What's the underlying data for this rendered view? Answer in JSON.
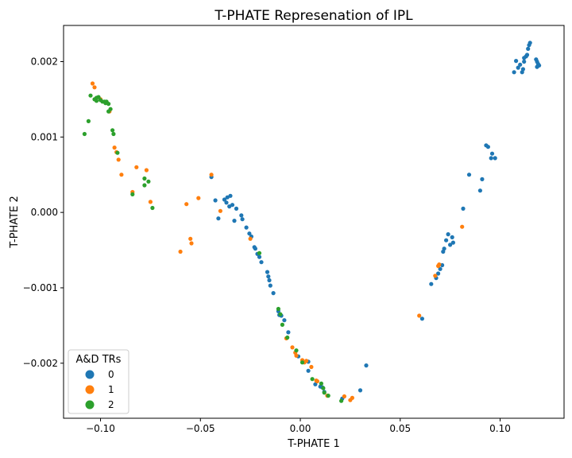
{
  "chart_data": {
    "type": "scatter",
    "title": "T-PHATE Represenation of IPL",
    "xlabel": "T-PHATE 1",
    "ylabel": "T-PHATE 2",
    "xlim": [
      -0.1185,
      0.132
    ],
    "ylim": [
      -0.00273,
      0.00248
    ],
    "x_ticks": [
      -0.1,
      -0.05,
      0.0,
      0.05,
      0.1
    ],
    "x_tick_labels": [
      "−0.10",
      "−0.05",
      "0.00",
      "0.05",
      "0.10"
    ],
    "y_ticks": [
      -0.002,
      -0.001,
      0.0,
      0.001,
      0.002
    ],
    "y_tick_labels": [
      "−0.002",
      "−0.001",
      "0.000",
      "0.001",
      "0.002"
    ],
    "grid": false,
    "legend": {
      "title": "A&D TRs",
      "placement": "lower-left"
    },
    "series": [
      {
        "name": "0",
        "color": "#1f77b4",
        "points": [
          [
            0.115,
            0.00225
          ],
          [
            0.1145,
            0.00222
          ],
          [
            0.114,
            0.00217
          ],
          [
            0.1135,
            0.00209
          ],
          [
            0.113,
            0.00207
          ],
          [
            0.112,
            0.002
          ],
          [
            0.112,
            0.00205
          ],
          [
            0.11,
            0.00196
          ],
          [
            0.1115,
            0.0019
          ],
          [
            0.111,
            0.00186
          ],
          [
            0.109,
            0.00192
          ],
          [
            0.108,
            0.00201
          ],
          [
            0.107,
            0.00186
          ],
          [
            0.118,
            0.00203
          ],
          [
            0.1185,
            0.002
          ],
          [
            0.119,
            0.00197
          ],
          [
            0.1195,
            0.00195
          ],
          [
            0.1185,
            0.00193
          ],
          [
            0.093,
            0.00089
          ],
          [
            0.094,
            0.00087
          ],
          [
            0.096,
            0.00078
          ],
          [
            0.0955,
            0.00072
          ],
          [
            0.0975,
            0.00072
          ],
          [
            0.0845,
            0.0005
          ],
          [
            0.091,
            0.00044
          ],
          [
            0.09,
            0.00029
          ],
          [
            0.0815,
            5e-05
          ],
          [
            0.074,
            -0.00029
          ],
          [
            0.076,
            -0.00033
          ],
          [
            0.073,
            -0.00037
          ],
          [
            0.0765,
            -0.0004
          ],
          [
            0.075,
            -0.00043
          ],
          [
            0.072,
            -0.00048
          ],
          [
            0.0715,
            -0.00052
          ],
          [
            0.071,
            -0.0007
          ],
          [
            0.07,
            -0.00075
          ],
          [
            0.069,
            -0.00081
          ],
          [
            0.068,
            -0.00087
          ],
          [
            0.0655,
            -0.00095
          ],
          [
            0.061,
            -0.00141
          ],
          [
            -0.0445,
            0.00047
          ],
          [
            -0.0425,
            0.00016
          ],
          [
            -0.0365,
            0.0002
          ],
          [
            -0.035,
            0.00022
          ],
          [
            -0.038,
            0.00017
          ],
          [
            -0.037,
            0.00013
          ],
          [
            -0.034,
            0.0001
          ],
          [
            -0.0355,
            8e-05
          ],
          [
            -0.032,
            5e-05
          ],
          [
            -0.041,
            -8e-05
          ],
          [
            -0.033,
            -0.00011
          ],
          [
            -0.0295,
            -4e-05
          ],
          [
            -0.029,
            -9e-05
          ],
          [
            -0.027,
            -0.0002
          ],
          [
            -0.0255,
            -0.00028
          ],
          [
            -0.0245,
            -0.00032
          ],
          [
            -0.023,
            -0.00046
          ],
          [
            -0.0225,
            -0.00048
          ],
          [
            -0.0215,
            -0.00055
          ],
          [
            -0.0205,
            -0.00059
          ],
          [
            -0.0195,
            -0.00066
          ],
          [
            -0.0165,
            -0.00079
          ],
          [
            -0.016,
            -0.00085
          ],
          [
            -0.0155,
            -0.0009
          ],
          [
            -0.015,
            -0.00097
          ],
          [
            -0.0135,
            -0.00107
          ],
          [
            -0.011,
            -0.00131
          ],
          [
            -0.0105,
            -0.00136
          ],
          [
            -0.0095,
            -0.00137
          ],
          [
            -0.008,
            -0.00143
          ],
          [
            -0.006,
            -0.00159
          ],
          [
            -0.001,
            -0.00191
          ],
          [
            0.004,
            -0.00198
          ],
          [
            0.004,
            -0.0021
          ],
          [
            0.0075,
            -0.00228
          ],
          [
            0.01,
            -0.00231
          ],
          [
            0.011,
            -0.00232
          ],
          [
            0.012,
            -0.00238
          ],
          [
            0.03,
            -0.00236
          ],
          [
            0.033,
            -0.00203
          ],
          [
            0.021,
            -0.00247
          ]
        ]
      },
      {
        "name": "1",
        "color": "#ff7f0e",
        "points": [
          [
            -0.104,
            0.00171
          ],
          [
            -0.103,
            0.00166
          ],
          [
            -0.1,
            0.0015
          ],
          [
            -0.0955,
            0.00134
          ],
          [
            -0.093,
            0.00086
          ],
          [
            -0.092,
            0.0008
          ],
          [
            -0.091,
            0.0007
          ],
          [
            -0.0895,
            0.0005
          ],
          [
            -0.082,
            0.0006
          ],
          [
            -0.077,
            0.00056
          ],
          [
            -0.084,
            0.00027
          ],
          [
            -0.075,
            0.00014
          ],
          [
            -0.057,
            0.00011
          ],
          [
            -0.051,
            0.00019
          ],
          [
            -0.0445,
            0.0005
          ],
          [
            -0.04,
            2e-05
          ],
          [
            -0.055,
            -0.00035
          ],
          [
            -0.0545,
            -0.00041
          ],
          [
            -0.06,
            -0.00052
          ],
          [
            -0.025,
            -0.00035
          ],
          [
            -0.007,
            -0.00167
          ],
          [
            -0.004,
            -0.00179
          ],
          [
            -0.0025,
            -0.00186
          ],
          [
            -0.002,
            -0.0019
          ],
          [
            0.001,
            -0.00196
          ],
          [
            0.002,
            -0.00199
          ],
          [
            0.003,
            -0.00197
          ],
          [
            0.0055,
            -0.00205
          ],
          [
            0.008,
            -0.00223
          ],
          [
            0.0085,
            -0.00224
          ],
          [
            0.0135,
            -0.00243
          ],
          [
            0.022,
            -0.00244
          ],
          [
            0.026,
            -0.00246
          ],
          [
            0.025,
            -0.00249
          ],
          [
            0.0595,
            -0.00137
          ],
          [
            0.069,
            -0.00071
          ],
          [
            0.0675,
            -0.00084
          ],
          [
            0.0695,
            -0.00069
          ],
          [
            0.081,
            -0.00019
          ]
        ]
      },
      {
        "name": "2",
        "color": "#2ca02c",
        "points": [
          [
            -0.105,
            0.00155
          ],
          [
            -0.102,
            0.00152
          ],
          [
            -0.103,
            0.0015
          ],
          [
            -0.101,
            0.00153
          ],
          [
            -0.1,
            0.00149
          ],
          [
            -0.099,
            0.00147
          ],
          [
            -0.098,
            0.00147
          ],
          [
            -0.097,
            0.00147
          ],
          [
            -0.096,
            0.00144
          ],
          [
            -0.0975,
            0.00145
          ],
          [
            -0.102,
            0.00148
          ],
          [
            -0.095,
            0.00137
          ],
          [
            -0.096,
            0.00134
          ],
          [
            -0.106,
            0.00121
          ],
          [
            -0.108,
            0.00104
          ],
          [
            -0.094,
            0.00109
          ],
          [
            -0.0935,
            0.00104
          ],
          [
            -0.0915,
            0.00079
          ],
          [
            -0.078,
            0.00045
          ],
          [
            -0.076,
            0.00041
          ],
          [
            -0.078,
            0.00036
          ],
          [
            -0.084,
            0.00024
          ],
          [
            -0.074,
            6e-05
          ],
          [
            -0.0205,
            -0.00054
          ],
          [
            -0.011,
            -0.00128
          ],
          [
            -0.01,
            -0.00135
          ],
          [
            -0.009,
            -0.00149
          ],
          [
            -0.0065,
            -0.00166
          ],
          [
            -0.002,
            -0.00183
          ],
          [
            0.001,
            -0.00199
          ],
          [
            0.006,
            -0.00221
          ],
          [
            0.0105,
            -0.00227
          ],
          [
            0.0115,
            -0.00233
          ],
          [
            0.012,
            -0.00239
          ],
          [
            0.014,
            -0.00243
          ],
          [
            0.0205,
            -0.0025
          ]
        ]
      }
    ]
  }
}
